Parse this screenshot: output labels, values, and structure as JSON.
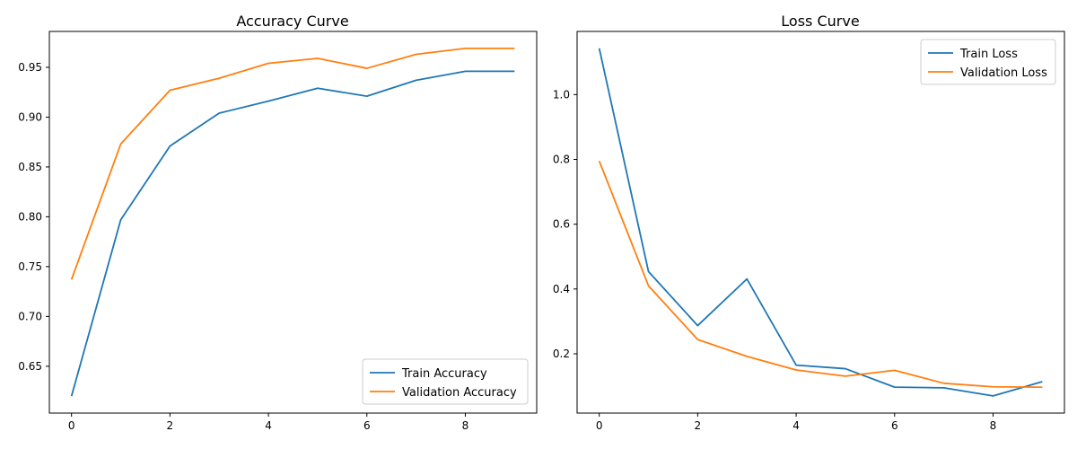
{
  "chart_data": [
    {
      "type": "line",
      "title": "Accuracy Curve",
      "xlabel": "",
      "ylabel": "",
      "x": [
        0,
        1,
        2,
        3,
        4,
        5,
        6,
        7,
        8,
        9
      ],
      "xlim": [
        -0.45,
        9.45
      ],
      "ylim": [
        0.603,
        0.986
      ],
      "xticks": [
        0,
        2,
        4,
        6,
        8
      ],
      "yticks": [
        0.65,
        0.7,
        0.75,
        0.8,
        0.85,
        0.9,
        0.95
      ],
      "ytick_labels": [
        "0.65",
        "0.70",
        "0.75",
        "0.80",
        "0.85",
        "0.90",
        "0.95"
      ],
      "legend_position": "lower-right",
      "grid": false,
      "series": [
        {
          "name": "Train Accuracy",
          "color": "#1f77b4",
          "values": [
            0.62,
            0.797,
            0.871,
            0.904,
            0.916,
            0.929,
            0.921,
            0.937,
            0.946,
            0.946
          ]
        },
        {
          "name": "Validation Accuracy",
          "color": "#ff7f0e",
          "values": [
            0.737,
            0.873,
            0.927,
            0.939,
            0.954,
            0.959,
            0.949,
            0.963,
            0.969,
            0.969
          ]
        }
      ]
    },
    {
      "type": "line",
      "title": "Loss Curve",
      "xlabel": "",
      "ylabel": "",
      "x": [
        0,
        1,
        2,
        3,
        4,
        5,
        6,
        7,
        8,
        9
      ],
      "xlim": [
        -0.45,
        9.45
      ],
      "ylim": [
        0.017,
        1.195
      ],
      "xticks": [
        0,
        2,
        4,
        6,
        8
      ],
      "yticks": [
        0.2,
        0.4,
        0.6,
        0.8,
        1.0
      ],
      "ytick_labels": [
        "0.2",
        "0.4",
        "0.6",
        "0.8",
        "1.0"
      ],
      "legend_position": "upper-right",
      "grid": false,
      "series": [
        {
          "name": "Train Loss",
          "color": "#1f77b4",
          "values": [
            1.143,
            0.454,
            0.287,
            0.431,
            0.165,
            0.154,
            0.097,
            0.095,
            0.07,
            0.114
          ]
        },
        {
          "name": "Validation Loss",
          "color": "#ff7f0e",
          "values": [
            0.795,
            0.41,
            0.244,
            0.192,
            0.15,
            0.131,
            0.149,
            0.109,
            0.098,
            0.097
          ]
        }
      ]
    }
  ]
}
